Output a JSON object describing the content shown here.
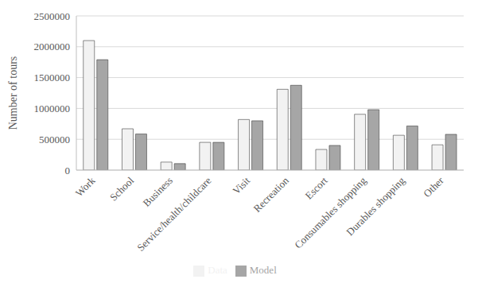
{
  "chart_data": {
    "type": "bar",
    "y_label": "Number of tours",
    "categories": [
      "Work",
      "School",
      "Business",
      "Service/health/childcare",
      "Visit",
      "Recreation",
      "Escort",
      "Consumables shopping",
      "Durables shopping",
      "Other"
    ],
    "series": [
      {
        "name": "Data",
        "color": "#f2f2f2",
        "values": [
          2100000,
          670000,
          130000,
          450000,
          820000,
          1310000,
          335000,
          905000,
          565000,
          410000
        ]
      },
      {
        "name": "Model",
        "color": "#a6a6a6",
        "values": [
          1790000,
          585000,
          105000,
          450000,
          800000,
          1375000,
          400000,
          980000,
          715000,
          580000
        ]
      }
    ],
    "ylim": [
      0,
      2500000
    ],
    "yticks": [
      0,
      500000,
      1000000,
      1500000,
      2000000,
      2500000
    ],
    "grid": true,
    "legend": "bottom"
  }
}
